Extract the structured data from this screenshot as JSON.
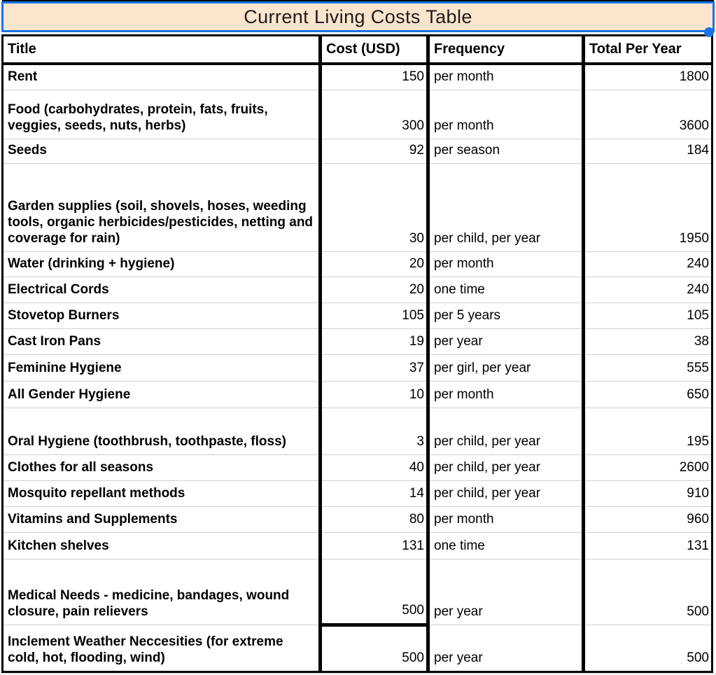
{
  "title_bar": {
    "text": "Current Living Costs Table"
  },
  "colors": {
    "selection_blue": "#1a73e8",
    "title_fill": "#fce5cd",
    "table_border": "#000000",
    "gridline": "#d0d0d0"
  },
  "table": {
    "columns": [
      "Title",
      "Cost (USD)",
      "Frequency",
      "Total Per Year"
    ],
    "rows": [
      {
        "title": "Rent",
        "cost": "150",
        "frequency": "per month",
        "total": "1800"
      },
      {
        "title": "Food (carbohydrates, protein, fats, fruits, veggies, seeds, nuts, herbs)",
        "cost": "300",
        "frequency": "per month",
        "total": "3600"
      },
      {
        "title": "Seeds",
        "cost": "92",
        "frequency": "per season",
        "total": "184"
      },
      {
        "title": "Garden supplies (soil, shovels, hoses, weeding tools, organic herbicides/pesticides, netting and coverage for rain)",
        "cost": "30",
        "frequency": "per child, per year",
        "total": "1950"
      },
      {
        "title": "Water (drinking + hygiene)",
        "cost": "20",
        "frequency": "per month",
        "total": "240"
      },
      {
        "title": "Electrical Cords",
        "cost": "20",
        "frequency": "one time",
        "total": "240"
      },
      {
        "title": "Stovetop Burners",
        "cost": "105",
        "frequency": "per 5 years",
        "total": "105"
      },
      {
        "title": "Cast Iron Pans",
        "cost": "19",
        "frequency": "per year",
        "total": "38"
      },
      {
        "title": "Feminine Hygiene",
        "cost": "37",
        "frequency": "per girl, per year",
        "total": "555"
      },
      {
        "title": "All Gender Hygiene",
        "cost": "10",
        "frequency": "per month",
        "total": "650"
      },
      {
        "title": "Oral Hygiene (toothbrush, toothpaste, floss)",
        "cost": "3",
        "frequency": "per child, per year",
        "total": "195"
      },
      {
        "title": "Clothes for all seasons",
        "cost": "40",
        "frequency": "per child, per year",
        "total": "2600"
      },
      {
        "title": "Mosquito repellant methods",
        "cost": "14",
        "frequency": "per child, per year",
        "total": "910"
      },
      {
        "title": "Vitamins and Supplements",
        "cost": "80",
        "frequency": "per month",
        "total": "960"
      },
      {
        "title": "Kitchen shelves",
        "cost": "131",
        "frequency": "one time",
        "total": "131"
      },
      {
        "title": "Medical Needs - medicine, bandages, wound closure, pain relievers",
        "cost": "500",
        "frequency": "per year",
        "total": "500"
      },
      {
        "title": "Inclement Weather Neccesities (for extreme cold, hot, flooding, wind)",
        "cost": "500",
        "frequency": "per year",
        "total": "500"
      }
    ]
  }
}
